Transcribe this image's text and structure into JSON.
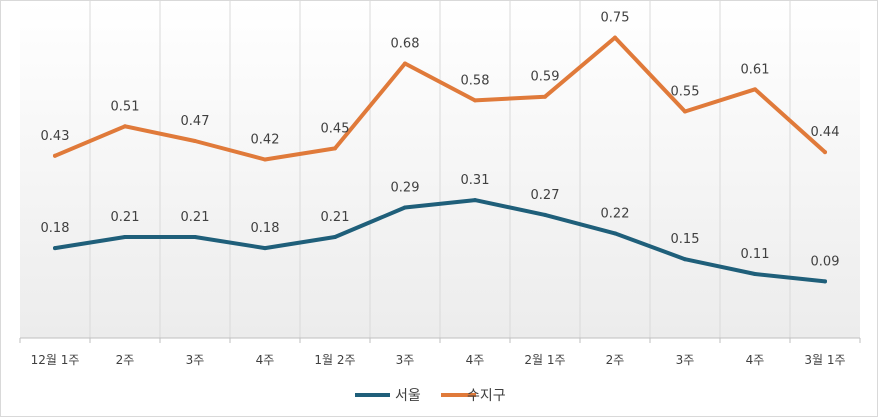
{
  "chart_data": {
    "type": "line",
    "title": "",
    "xlabel": "",
    "ylabel": "",
    "ylim": [
      0,
      0.8
    ],
    "grid": "vertical",
    "legend": "bottom-center",
    "categories": [
      "12월 1주",
      "2주",
      "3주",
      "4주",
      "1월 2주",
      "3주",
      "4주",
      "2월 1주",
      "2주",
      "3주",
      "4주",
      "3월 1주"
    ],
    "series": [
      {
        "name": "서울",
        "color": "#1f5f7a",
        "values": [
          0.18,
          0.21,
          0.21,
          0.18,
          0.21,
          0.29,
          0.31,
          0.27,
          0.22,
          0.15,
          0.11,
          0.09
        ],
        "labels": [
          "0.18",
          "0.21",
          "0.21",
          "0.18",
          "0.21",
          "0.29",
          "0.31",
          "0.27",
          "0.22",
          "0.15",
          "0.11",
          "0.09"
        ]
      },
      {
        "name": "수지구",
        "color": "#e07a3a",
        "values": [
          0.43,
          0.51,
          0.47,
          0.42,
          0.45,
          0.68,
          0.58,
          0.59,
          0.75,
          0.55,
          0.61,
          0.44
        ],
        "labels": [
          "0.43",
          "0.51",
          "0.47",
          "0.42",
          "0.45",
          "0.68",
          "0.58",
          "0.59",
          "0.75",
          "0.55",
          "0.61",
          "0.44"
        ]
      }
    ]
  }
}
